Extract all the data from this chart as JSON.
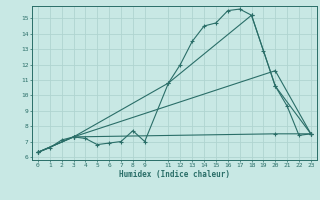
{
  "xlabel": "Humidex (Indice chaleur)",
  "background_color": "#c8e8e4",
  "grid_color": "#b0d4d0",
  "line_color": "#2a6e68",
  "xlim": [
    -0.5,
    23.5
  ],
  "ylim": [
    5.8,
    15.8
  ],
  "yticks": [
    6,
    7,
    8,
    9,
    10,
    11,
    12,
    13,
    14,
    15
  ],
  "xticks": [
    0,
    1,
    2,
    3,
    4,
    5,
    6,
    7,
    8,
    9,
    11,
    12,
    13,
    14,
    15,
    16,
    17,
    18,
    19,
    20,
    21,
    22,
    23
  ],
  "series1_x": [
    0,
    1,
    2,
    3,
    4,
    5,
    6,
    7,
    8,
    9,
    11,
    12,
    13,
    14,
    15,
    16,
    17,
    18,
    19,
    20,
    21,
    22,
    23
  ],
  "series1_y": [
    6.3,
    6.6,
    7.1,
    7.3,
    7.2,
    6.8,
    6.9,
    7.0,
    7.7,
    7.0,
    10.8,
    12.0,
    13.5,
    14.5,
    14.7,
    15.5,
    15.6,
    15.2,
    12.9,
    10.6,
    9.3,
    7.4,
    7.5
  ],
  "series2_x": [
    0,
    3,
    11,
    18,
    20,
    23
  ],
  "series2_y": [
    6.3,
    7.3,
    10.8,
    15.2,
    10.6,
    7.5
  ],
  "series3_x": [
    0,
    3,
    20,
    23
  ],
  "series3_y": [
    6.3,
    7.3,
    11.6,
    7.5
  ],
  "series4_x": [
    0,
    3,
    20,
    23
  ],
  "series4_y": [
    6.3,
    7.3,
    7.5,
    7.5
  ]
}
